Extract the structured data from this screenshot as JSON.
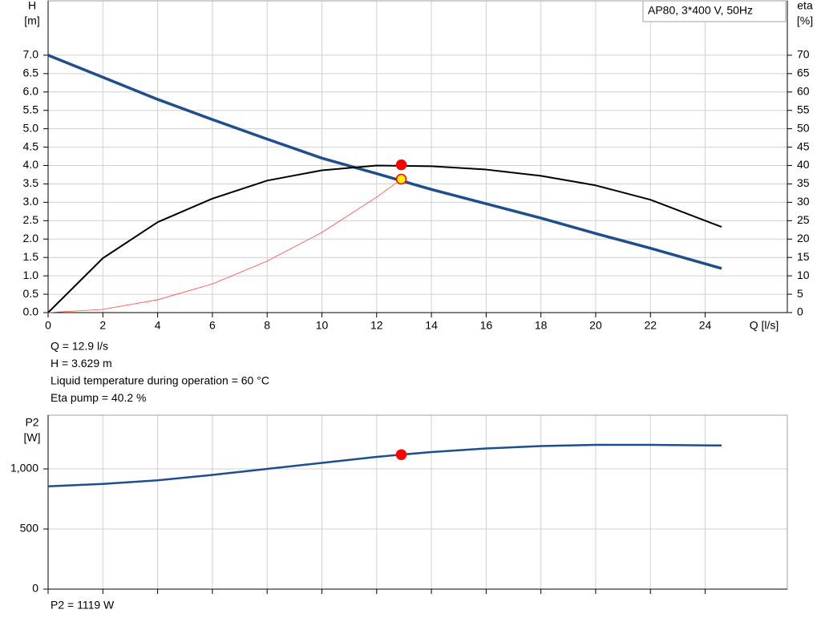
{
  "chart_data": [
    {
      "type": "line",
      "title": "AP80, 3*400 V, 50Hz",
      "xlabel": "Q [l/s]",
      "ylabel": [
        "H",
        "[m]"
      ],
      "y2label": [
        "eta",
        "[%]"
      ],
      "xlim": [
        0,
        27
      ],
      "ylim": [
        0,
        8.48
      ],
      "y2lim": [
        0,
        84.8
      ],
      "xticks": [
        0,
        2,
        4,
        6,
        8,
        10,
        12,
        14,
        16,
        18,
        20,
        22,
        24
      ],
      "yticks": [
        {
          "value": 0,
          "label": "0.0"
        },
        0.5,
        {
          "value": 1,
          "label": "1.0"
        },
        1.5,
        {
          "value": 2,
          "label": "2.0"
        },
        2.5,
        {
          "value": 3,
          "label": "3.0"
        },
        3.5,
        {
          "value": 4,
          "label": "4.0"
        },
        4.5,
        {
          "value": 5,
          "label": "5.0"
        },
        5.5,
        {
          "value": 6,
          "label": "6.0"
        },
        6.5,
        {
          "value": 7,
          "label": "7.0"
        }
      ],
      "y2ticks": [
        0,
        5,
        10,
        15,
        20,
        25,
        30,
        35,
        40,
        45,
        50,
        55,
        60,
        65,
        70
      ],
      "grid": true,
      "x_tick_labels": true,
      "series": [
        {
          "color": "#1f4e8c",
          "line_width": 3.5,
          "axis": "y",
          "x": [
            0,
            2,
            4,
            6,
            8,
            10,
            12,
            14,
            16,
            18,
            20,
            22,
            24.6
          ],
          "values": [
            7.0,
            6.4,
            5.8,
            5.25,
            4.72,
            4.2,
            3.78,
            3.35,
            2.96,
            2.57,
            2.15,
            1.75,
            1.2
          ]
        },
        {
          "color": "#000000",
          "line_width": 2,
          "axis": "y2",
          "x": [
            0,
            2,
            4,
            6,
            8,
            10,
            12,
            14,
            16,
            18,
            20,
            22,
            24.6
          ],
          "values": [
            0,
            14.8,
            24.6,
            31,
            35.9,
            38.7,
            40,
            39.8,
            38.9,
            37.2,
            34.6,
            30.7,
            23.3
          ]
        },
        {
          "color": "#ff4a3a",
          "line_width": 0.8,
          "axis": "y",
          "x": [
            0,
            2,
            4,
            6,
            8,
            10,
            12,
            12.9
          ],
          "values": [
            0,
            0.087,
            0.35,
            0.78,
            1.4,
            2.18,
            3.14,
            3.629
          ]
        }
      ],
      "points": [
        {
          "x": 12.9,
          "y": 40.2,
          "axis": "y2",
          "color": "#ff0000",
          "edge": "#ff0000"
        },
        {
          "x": 12.9,
          "y": 3.629,
          "axis": "y",
          "color": "#ffee00",
          "edge": "#ff0000"
        }
      ],
      "annotations": [
        "Q = 12.9 l/s",
        "H = 3.629 m",
        "Liquid temperature during operation = 60 °C",
        "Eta pump = 40.2 %"
      ]
    },
    {
      "type": "line",
      "ylabel": [
        "P2",
        "[W]"
      ],
      "xlim": [
        0,
        27
      ],
      "ylim": [
        0,
        1447
      ],
      "xticks": [
        0,
        2,
        4,
        6,
        8,
        10,
        12,
        14,
        16,
        18,
        20,
        22,
        24
      ],
      "yticks": [
        0,
        500,
        {
          "value": 1000,
          "label": "1,000"
        }
      ],
      "grid": true,
      "x_tick_labels": false,
      "series": [
        {
          "color": "#1f4e8c",
          "line_width": 2.5,
          "axis": "y",
          "x": [
            0,
            2,
            4,
            6,
            8,
            10,
            12,
            12.9,
            14,
            16,
            18,
            20,
            22,
            24.6
          ],
          "values": [
            855,
            875,
            905,
            950,
            1000,
            1050,
            1100,
            1119,
            1140,
            1170,
            1190,
            1200,
            1200,
            1195
          ]
        }
      ],
      "points": [
        {
          "x": 12.9,
          "y": 1119,
          "axis": "y",
          "color": "#ff0000",
          "edge": "#ff0000"
        }
      ],
      "annotations": [
        "P2 = 1119 W"
      ]
    }
  ]
}
